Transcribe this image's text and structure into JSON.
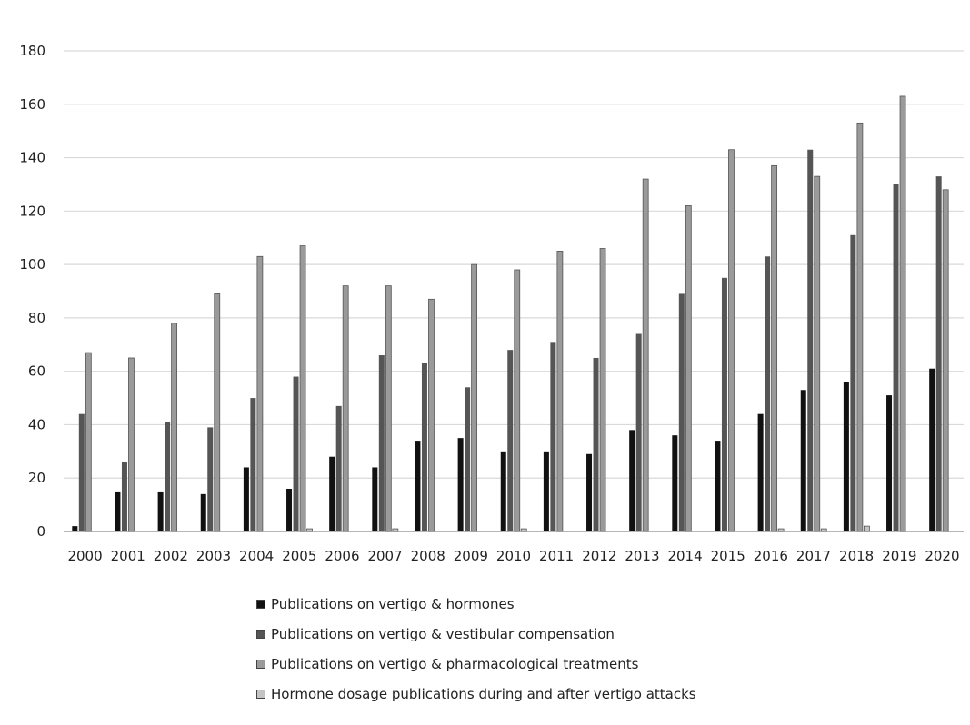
{
  "chart_data": {
    "type": "bar",
    "title": "",
    "xlabel": "",
    "ylabel": "",
    "ylim": [
      0,
      180
    ],
    "yticks": [
      0,
      20,
      40,
      60,
      80,
      100,
      120,
      140,
      160,
      180
    ],
    "grid": true,
    "legend_position": "bottom",
    "categories": [
      "2000",
      "2001",
      "2002",
      "2003",
      "2004",
      "2005",
      "2006",
      "2007",
      "2008",
      "2009",
      "2010",
      "2011",
      "2012",
      "2013",
      "2014",
      "2015",
      "2016",
      "2017",
      "2018",
      "2019",
      "2020"
    ],
    "series": [
      {
        "name": "Publications on vertigo & hormones",
        "color": "#111111",
        "values": [
          2,
          15,
          15,
          14,
          24,
          16,
          28,
          24,
          34,
          35,
          30,
          30,
          29,
          38,
          36,
          34,
          44,
          53,
          56,
          51,
          61
        ]
      },
      {
        "name": "Publications on vertigo & vestibular compensation",
        "color": "#555555",
        "values": [
          44,
          26,
          41,
          39,
          50,
          58,
          47,
          66,
          63,
          54,
          68,
          71,
          65,
          74,
          89,
          95,
          103,
          143,
          111,
          130,
          133
        ]
      },
      {
        "name": "Publications on vertigo & pharmacological treatments",
        "color": "#9a9a9a",
        "values": [
          67,
          65,
          78,
          89,
          103,
          107,
          92,
          92,
          87,
          100,
          98,
          105,
          106,
          132,
          122,
          143,
          137,
          133,
          153,
          163,
          128
        ]
      },
      {
        "name": "Hormone dosage publications during and after vertigo attacks",
        "color": "#c4c4c4",
        "values": [
          0,
          0,
          0,
          0,
          0,
          1,
          0,
          1,
          0,
          0,
          1,
          0,
          0,
          0,
          0,
          0,
          1,
          1,
          2,
          0,
          0
        ]
      }
    ]
  }
}
